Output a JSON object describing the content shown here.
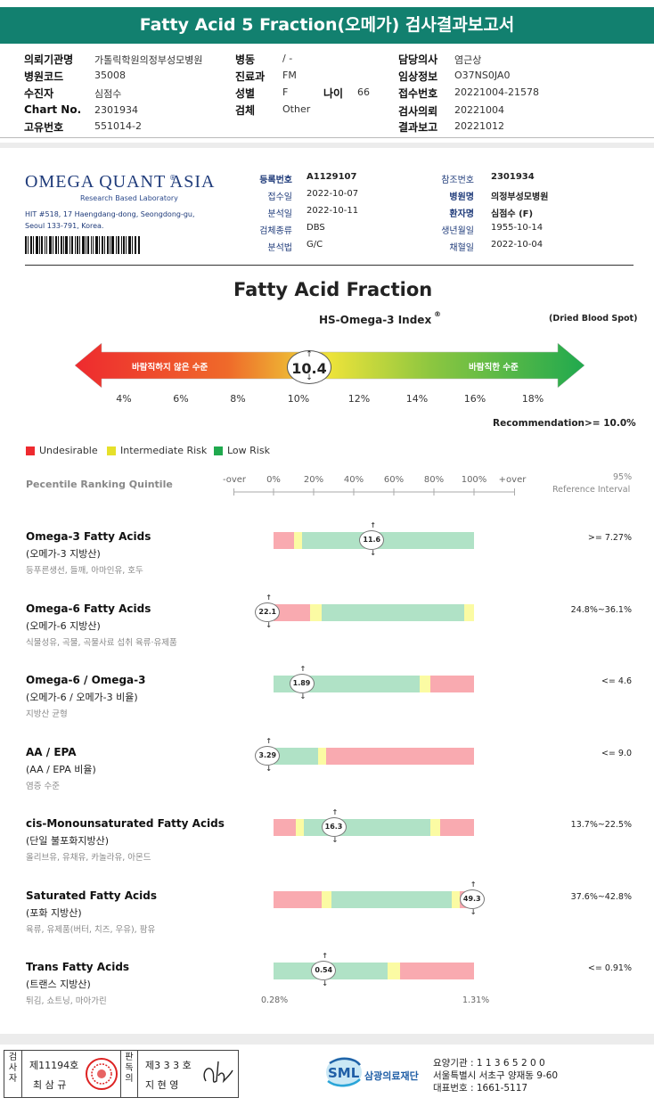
{
  "header": {
    "title": "Fatty Acid 5 Fraction(오메가) 검사결과보고서",
    "fields": {
      "institution_label": "의뢰기관명",
      "institution": "가톨릭학원의정부성모병원",
      "hospital_code_label": "병원코드",
      "hospital_code": "35008",
      "patient_label": "수진자",
      "patient": "심점수",
      "chart_label": "Chart No.",
      "chart": "2301934",
      "id_label": "고유번호",
      "id": "551014-2",
      "ward_label": "병동",
      "ward": "/ -",
      "dept_label": "진료과",
      "dept": "FM",
      "sex_label": "성별",
      "sex": "F",
      "age_label": "나이",
      "age": "66",
      "specimen_label": "검체",
      "specimen": "Other",
      "doctor_label": "담당의사",
      "doctor": "염근상",
      "clinical_label": "임상정보",
      "clinical": "O37NS0JA0",
      "receipt_label": "접수번호",
      "receipt": "20221004-21578",
      "request_label": "검사의뢰",
      "request": "20221004",
      "report_label": "결과보고",
      "report": "20221012"
    }
  },
  "lab": {
    "brand": "OMEGA QUANT ASIA",
    "reg_mark": "®",
    "tagline": "Research Based Laboratory",
    "address1": "HIT #518, 17 Haengdang-dong, Seongdong-gu,",
    "address2": "Seoul 133-791, Korea."
  },
  "info": {
    "reg_no_label": "등록번호",
    "reg_no": "A1129107",
    "received_label": "접수일",
    "received": "2022-10-07",
    "analyzed_label": "분석일",
    "analyzed": "2022-10-11",
    "specimen_type_label": "검체종류",
    "specimen_type": "DBS",
    "method_label": "분석법",
    "method": "G/C",
    "ref_no_label": "참조번호",
    "ref_no": "2301934",
    "hospital_label": "병원명",
    "hospital": "의정부성모병원",
    "patient_label": "환자명",
    "patient": "심점수 (F)",
    "dob_label": "생년월일",
    "dob": "1955-10-14",
    "collected_label": "채혈일",
    "collected": "2022-10-04"
  },
  "index": {
    "title": "Fatty Acid Fraction",
    "subtitle": "HS-Omega-3 Index",
    "subtitle_mark": "®",
    "note": "(Dried Blood Spot)",
    "value": "10.4",
    "value_percent": 10.4,
    "left_label": "바람직하지 않은 수준",
    "right_label": "바람직한 수준",
    "ticks": [
      "4%",
      "6%",
      "8%",
      "10%",
      "12%",
      "14%",
      "16%",
      "18%"
    ],
    "recommendation_label": "Recommendation",
    "recommendation_value": ">= 10.0%"
  },
  "legend": {
    "undesirable": "Undesirable",
    "intermediate": "Intermediate Risk",
    "low": "Low Risk",
    "colors": {
      "red": "#ee2a2f",
      "yellow": "#e6e02a",
      "green": "#20a94e"
    }
  },
  "percentile": {
    "label": "Pecentile Ranking Quintile",
    "scale": [
      "-over",
      "0%",
      "20%",
      "40%",
      "60%",
      "80%",
      "100%",
      "+over"
    ],
    "ref_label1": "95%",
    "ref_label2": "Reference Interval"
  },
  "bar_colors": {
    "red": "#f9aab0",
    "yellow": "#fbfba3",
    "green": "#b0e2c6"
  },
  "rows": [
    {
      "title": "Omega-3 Fatty Acids",
      "sub": "(오메가-3 지방산)",
      "desc": "등푸른생선, 들깨, 아마인유, 호두",
      "ref": ">= 7.27%",
      "value": "11.6",
      "pos": 0.49,
      "segments": [
        [
          "red",
          0.1
        ],
        [
          "yellow",
          0.04
        ],
        [
          "green",
          0.86
        ]
      ]
    },
    {
      "title": "Omega-6 Fatty Acids",
      "sub": "(오메가-6 지방산)",
      "desc": "식물성유, 곡물, 곡물사료 섭취 육류·유제품",
      "ref": "24.8%~36.1%",
      "value": "22.1",
      "pos": -0.03,
      "segments": [
        [
          "red",
          0.18
        ],
        [
          "yellow",
          0.06
        ],
        [
          "green",
          0.71
        ],
        [
          "yellow",
          0.05
        ]
      ]
    },
    {
      "title": "Omega-6 / Omega-3",
      "sub": "(오메가-6 / 오메가-3 비율)",
      "desc": "지방산 균형",
      "ref": "<= 4.6",
      "value": "1.89",
      "pos": 0.14,
      "segments": [
        [
          "green",
          0.73
        ],
        [
          "yellow",
          0.05
        ],
        [
          "red",
          0.22
        ]
      ]
    },
    {
      "title": "AA / EPA",
      "sub": "(AA / EPA 비율)",
      "desc": "염증 수준",
      "ref": "<= 9.0",
      "value": "3.29",
      "pos": -0.03,
      "segments": [
        [
          "green",
          0.22
        ],
        [
          "yellow",
          0.04
        ],
        [
          "red",
          0.74
        ]
      ]
    },
    {
      "title": "cis-Monounsaturated Fatty Acids",
      "sub": "(단일 불포화지방산)",
      "desc": "올리브유, 유채유, 카놀라유, 아몬드",
      "ref": "13.7%~22.5%",
      "value": "16.3",
      "pos": 0.3,
      "segments": [
        [
          "red",
          0.11
        ],
        [
          "yellow",
          0.04
        ],
        [
          "green",
          0.63
        ],
        [
          "yellow",
          0.05
        ],
        [
          "red",
          0.17
        ]
      ]
    },
    {
      "title": "Saturated Fatty Acids",
      "sub": "(포화 지방산)",
      "desc": "육류, 유제품(버터, 치즈, 우유), 팜유",
      "ref": "37.6%~42.8%",
      "value": "49.3",
      "pos": 0.99,
      "segments": [
        [
          "red",
          0.24
        ],
        [
          "yellow",
          0.05
        ],
        [
          "green",
          0.6
        ],
        [
          "yellow",
          0.04
        ],
        [
          "red",
          0.07
        ]
      ]
    },
    {
      "title": "Trans Fatty Acids",
      "sub": "(트랜스 지방산)",
      "desc": "튀김, 쇼트닝, 마아가린",
      "ref": "<= 0.91%",
      "value": "0.54",
      "pos": 0.25,
      "segments": [
        [
          "green",
          0.57
        ],
        [
          "yellow",
          0.06
        ],
        [
          "red",
          0.37
        ]
      ]
    }
  ],
  "trans_scale": {
    "min": "0.28%",
    "max": "1.31%"
  },
  "footer": {
    "examiner_label": "검사자",
    "examiner_no": "제11194호",
    "examiner_name": "최 삼 규",
    "reviewer_label": "판독의",
    "reviewer_no": "제3 3 3 호",
    "reviewer_name": "지 현 영",
    "org_logo": "SML",
    "org_name": "삼광의료재단",
    "agency_no": "요양기관 : 1 1 3 6 5 2 0 0",
    "address": "서울특별시 서초구 양재동 9-60",
    "phone": "대표번호 : 1661-5117"
  }
}
